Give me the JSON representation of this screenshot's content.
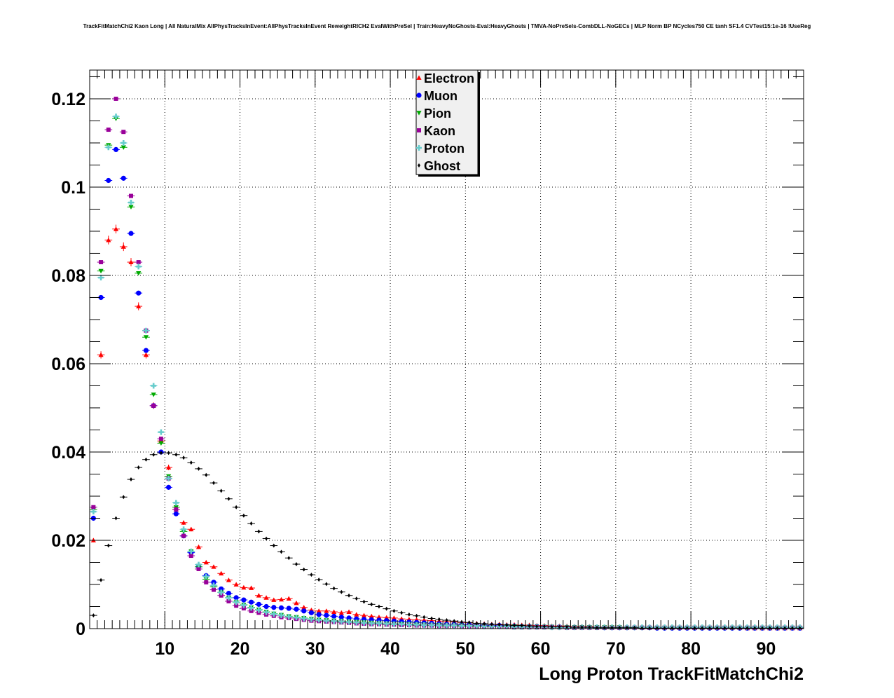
{
  "chart_data": {
    "type": "scatter",
    "title": "TrackFitMatchChi2 Kaon Long | All NaturalMix AllPhysTracksInEvent:AllPhysTracksInEvent ReweightRICH2 EvalWithPreSel | Train:HeavyNoGhosts-Eval:HeavyGhosts | TMVA-NoPreSels-CombDLL-NoGECs | MLP Norm BP NCycles750 CE tanh SF1.4 CVTest15:1e-16 !UseReg",
    "xlabel": "Long Proton TrackFitMatchChi2",
    "ylabel": "",
    "xlim": [
      0,
      95
    ],
    "ylim": [
      0,
      0.1265
    ],
    "xticks": [
      10,
      20,
      30,
      40,
      50,
      60,
      70,
      80,
      90
    ],
    "yticks": [
      0,
      0.02,
      0.04,
      0.06,
      0.08,
      0.1,
      0.12
    ],
    "ytick_labels": [
      "0",
      "0.02",
      "0.04",
      "0.06",
      "0.08",
      "0.1",
      "0.12"
    ],
    "grid": true,
    "legend_position": "top-center",
    "bin_width": 1,
    "series": [
      {
        "name": "Electron",
        "color": "#ff0000",
        "marker": "triangle-up",
        "values": [
          0.02,
          0.062,
          0.088,
          0.0905,
          0.0865,
          0.083,
          0.073,
          0.062,
          0.0505,
          0.0425,
          0.0365,
          0.027,
          0.024,
          0.0225,
          0.0185,
          0.015,
          0.014,
          0.0125,
          0.011,
          0.01,
          0.0093,
          0.0092,
          0.0075,
          0.007,
          0.0065,
          0.0066,
          0.0068,
          0.0058,
          0.0048,
          0.0042,
          0.004,
          0.004,
          0.0038,
          0.0036,
          0.0038,
          0.0032,
          0.003,
          0.0028,
          0.0026,
          0.0025,
          0.0024,
          0.0022,
          0.0021,
          0.002,
          0.0019,
          0.0018,
          0.0017,
          0.0016,
          0.0015,
          0.0014,
          0.0013,
          0.0012,
          0.0011,
          0.001,
          0.001,
          0.0009,
          0.0009,
          0.0008,
          0.0008,
          0.0007,
          0.0007,
          0.0006,
          0.0006,
          0.0006,
          0.0005,
          0.0005,
          0.0005,
          0.0004,
          0.0004,
          0.0004,
          0.0004,
          0.0003,
          0.0003,
          0.0003,
          0.0003,
          0.0003,
          0.0003,
          0.0002,
          0.0002,
          0.0002,
          0.0002,
          0.0002,
          0.0002,
          0.0002,
          0.0002,
          0.0002,
          0.0002,
          0.0001,
          0.0001,
          0.0001,
          0.0001,
          0.0001,
          0.0001,
          0.0001,
          0.0001
        ]
      },
      {
        "name": "Muon",
        "color": "#0000ff",
        "marker": "circle",
        "values": [
          0.025,
          0.075,
          0.1015,
          0.1085,
          0.102,
          0.0895,
          0.076,
          0.063,
          0.0505,
          0.04,
          0.032,
          0.026,
          0.021,
          0.0172,
          0.014,
          0.012,
          0.0105,
          0.009,
          0.008,
          0.007,
          0.0065,
          0.006,
          0.0055,
          0.005,
          0.0048,
          0.0047,
          0.0046,
          0.0044,
          0.004,
          0.0036,
          0.0032,
          0.003,
          0.0028,
          0.0026,
          0.0024,
          0.0022,
          0.0021,
          0.002,
          0.0019,
          0.0018,
          0.0017,
          0.0016,
          0.0015,
          0.0014,
          0.0013,
          0.0012,
          0.0011,
          0.001,
          0.001,
          0.0009,
          0.0009,
          0.0008,
          0.0008,
          0.0007,
          0.0007,
          0.0006,
          0.0006,
          0.0005,
          0.0005,
          0.0005,
          0.0004,
          0.0004,
          0.0004,
          0.0003,
          0.0003,
          0.0003,
          0.0003,
          0.0003,
          0.0002,
          0.0002,
          0.0002,
          0.0002,
          0.0002,
          0.0002,
          0.0002,
          0.0001,
          0.0001,
          0.0001,
          0.0001,
          0.0001,
          0.0001,
          0.0001,
          0.0001,
          0.0001,
          0.0001,
          0.0001,
          0.0001,
          0.0001,
          0.0001,
          0.0001,
          0.0001,
          0.0001,
          0.0001,
          0.0001,
          0.0001
        ]
      },
      {
        "name": "Pion",
        "color": "#00aa00",
        "marker": "triangle-down",
        "values": [
          0.027,
          0.081,
          0.1095,
          0.1155,
          0.109,
          0.0955,
          0.0805,
          0.066,
          0.053,
          0.042,
          0.0345,
          0.0275,
          0.022,
          0.0175,
          0.014,
          0.0112,
          0.0095,
          0.0082,
          0.007,
          0.006,
          0.0054,
          0.0048,
          0.0043,
          0.0038,
          0.0034,
          0.0031,
          0.0028,
          0.0026,
          0.0024,
          0.0022,
          0.002,
          0.0019,
          0.0018,
          0.0017,
          0.0016,
          0.0015,
          0.0014,
          0.0013,
          0.0012,
          0.0011,
          0.0011,
          0.001,
          0.001,
          0.0009,
          0.0009,
          0.0008,
          0.0008,
          0.0007,
          0.0007,
          0.0007,
          0.0006,
          0.0006,
          0.0006,
          0.0005,
          0.0005,
          0.0005,
          0.0005,
          0.0004,
          0.0004,
          0.0004,
          0.0004,
          0.0004,
          0.0003,
          0.0003,
          0.0003,
          0.0003,
          0.0003,
          0.0003,
          0.0003,
          0.0003,
          0.0003,
          0.0002,
          0.0002,
          0.0002,
          0.0002,
          0.0002,
          0.0002,
          0.0002,
          0.0002,
          0.0002,
          0.0002,
          0.0002,
          0.0002,
          0.0002,
          0.0002,
          0.0002,
          0.0002,
          0.0002,
          0.0002,
          0.0002,
          0.0002,
          0.0002,
          0.0002,
          0.0002,
          0.0002
        ]
      },
      {
        "name": "Kaon",
        "color": "#990099",
        "marker": "square",
        "values": [
          0.0275,
          0.083,
          0.113,
          0.12,
          0.1125,
          0.098,
          0.083,
          0.0675,
          0.0505,
          0.043,
          0.034,
          0.027,
          0.021,
          0.0165,
          0.0135,
          0.0105,
          0.0088,
          0.0075,
          0.0062,
          0.0052,
          0.0046,
          0.004,
          0.0036,
          0.0032,
          0.0029,
          0.0026,
          0.0024,
          0.0022,
          0.002,
          0.0018,
          0.0017,
          0.0016,
          0.0015,
          0.0014,
          0.0013,
          0.0012,
          0.0011,
          0.001,
          0.001,
          0.0009,
          0.0009,
          0.0008,
          0.0008,
          0.0007,
          0.0007,
          0.0007,
          0.0006,
          0.0006,
          0.0006,
          0.0005,
          0.0005,
          0.0005,
          0.0004,
          0.0004,
          0.0004,
          0.0004,
          0.0003,
          0.0003,
          0.0003,
          0.0003,
          0.0003,
          0.0003,
          0.0003,
          0.0002,
          0.0002,
          0.0002,
          0.0002,
          0.0002,
          0.0002,
          0.0002,
          0.0002,
          0.0002,
          0.0002,
          0.0002,
          0.0002,
          0.0002,
          0.0002,
          0.0002,
          0.0002,
          0.0002,
          0.0002,
          0.0002,
          0.0002,
          0.0002,
          0.0002,
          0.0002,
          0.0002,
          0.0002,
          0.0002,
          0.0002,
          0.0002,
          0.0002,
          0.0002,
          0.0002,
          0.0002
        ]
      },
      {
        "name": "Proton",
        "color": "#66cccc",
        "marker": "cross",
        "values": [
          0.0265,
          0.0795,
          0.109,
          0.116,
          0.11,
          0.0965,
          0.082,
          0.0675,
          0.055,
          0.0445,
          0.034,
          0.0285,
          0.0225,
          0.0175,
          0.0145,
          0.0118,
          0.0098,
          0.0082,
          0.007,
          0.006,
          0.0053,
          0.0047,
          0.0042,
          0.0037,
          0.0033,
          0.003,
          0.0027,
          0.0025,
          0.0023,
          0.0021,
          0.002,
          0.0018,
          0.0017,
          0.0016,
          0.0015,
          0.0014,
          0.0013,
          0.0012,
          0.0012,
          0.0011,
          0.001,
          0.001,
          0.0009,
          0.0009,
          0.0008,
          0.0008,
          0.0007,
          0.0007,
          0.0007,
          0.0006,
          0.0006,
          0.0006,
          0.0005,
          0.0005,
          0.0005,
          0.0005,
          0.0004,
          0.0004,
          0.0004,
          0.0004,
          0.0004,
          0.0003,
          0.0003,
          0.0003,
          0.0003,
          0.0003,
          0.0003,
          0.0003,
          0.0003,
          0.0003,
          0.0003,
          0.0003,
          0.0003,
          0.0003,
          0.0003,
          0.0003,
          0.0003,
          0.0003,
          0.0003,
          0.0003,
          0.0003,
          0.0003,
          0.0003,
          0.0003,
          0.0003,
          0.0003,
          0.0003,
          0.0003,
          0.0003,
          0.0003,
          0.0003,
          0.0003,
          0.0003,
          0.0003,
          0.0003
        ]
      },
      {
        "name": "Ghost",
        "color": "#000000",
        "marker": "diamond",
        "values": [
          0.003,
          0.011,
          0.0188,
          0.025,
          0.0298,
          0.0338,
          0.0365,
          0.0383,
          0.0394,
          0.0398,
          0.0398,
          0.0394,
          0.0387,
          0.0376,
          0.0362,
          0.0348,
          0.033,
          0.0312,
          0.0294,
          0.0275,
          0.0256,
          0.0238,
          0.022,
          0.0204,
          0.0188,
          0.0174,
          0.016,
          0.0146,
          0.0134,
          0.0122,
          0.0111,
          0.0101,
          0.0091,
          0.0083,
          0.0075,
          0.0068,
          0.0061,
          0.0055,
          0.005,
          0.0045,
          0.004,
          0.0036,
          0.0032,
          0.0029,
          0.0026,
          0.0023,
          0.0021,
          0.0019,
          0.0017,
          0.0015,
          0.0014,
          0.0012,
          0.0011,
          0.001,
          0.0009,
          0.0008,
          0.0007,
          0.0007,
          0.0006,
          0.0005,
          0.0005,
          0.0004,
          0.0004,
          0.0004,
          0.0003,
          0.0003,
          0.0003,
          0.0002,
          0.0002,
          0.0002,
          0.0002,
          0.0002,
          0.0002,
          0.0001,
          0.0001,
          0.0001,
          0.0001,
          0.0001,
          0.0001,
          0.0001,
          0.0001,
          0.0001,
          0.0001,
          0.0001,
          0.0001,
          0.0001,
          0.0001,
          0.0001,
          0.0001,
          0.0001,
          0.0001,
          0.0001,
          0.0001,
          0.0001,
          0.0001
        ]
      }
    ]
  }
}
